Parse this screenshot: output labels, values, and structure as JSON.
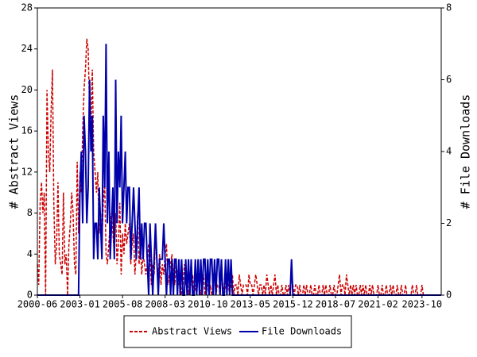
{
  "chart_data": {
    "type": "line",
    "y_label": "# Abstract Views",
    "y2_label": "# File Downloads",
    "x": [
      "2000-06",
      "2000-07",
      "2000-08",
      "2000-09",
      "2000-10",
      "2000-11",
      "2000-12",
      "2001-01",
      "2001-02",
      "2001-03",
      "2001-04",
      "2001-05",
      "2001-06",
      "2001-07",
      "2001-08",
      "2001-09",
      "2001-10",
      "2001-11",
      "2001-12",
      "2002-01",
      "2002-02",
      "2002-03",
      "2002-04",
      "2002-05",
      "2002-06",
      "2002-07",
      "2002-08",
      "2002-09",
      "2002-10",
      "2002-11",
      "2002-12",
      "2003-01",
      "2003-02",
      "2003-03",
      "2003-04",
      "2003-05",
      "2003-06",
      "2003-07",
      "2003-08",
      "2003-09",
      "2003-10",
      "2003-11",
      "2003-12",
      "2004-01",
      "2004-02",
      "2004-03",
      "2004-04",
      "2004-05",
      "2004-06",
      "2004-07",
      "2004-08",
      "2004-09",
      "2004-10",
      "2004-11",
      "2004-12",
      "2005-01",
      "2005-02",
      "2005-03",
      "2005-04",
      "2005-05",
      "2005-06",
      "2005-07",
      "2005-08",
      "2005-09",
      "2005-10",
      "2005-11",
      "2005-12",
      "2006-01",
      "2006-02",
      "2006-03",
      "2006-04",
      "2006-05",
      "2006-06",
      "2006-07",
      "2006-08",
      "2006-09",
      "2006-10",
      "2006-11",
      "2006-12",
      "2007-01",
      "2007-02",
      "2007-03",
      "2007-04",
      "2007-05",
      "2007-06",
      "2007-07",
      "2007-08",
      "2007-09",
      "2007-10",
      "2007-11",
      "2007-12",
      "2008-01",
      "2008-02",
      "2008-03",
      "2008-04",
      "2008-05",
      "2008-06",
      "2008-07",
      "2008-08",
      "2008-09",
      "2008-10",
      "2008-11",
      "2008-12",
      "2009-01",
      "2009-02",
      "2009-03",
      "2009-04",
      "2009-05",
      "2009-06",
      "2009-07",
      "2009-08",
      "2009-09",
      "2009-10",
      "2009-11",
      "2009-12",
      "2010-01",
      "2010-02",
      "2010-03",
      "2010-04",
      "2010-05",
      "2010-06",
      "2010-07",
      "2010-08",
      "2010-09",
      "2010-10",
      "2010-11",
      "2010-12",
      "2011-01",
      "2011-02",
      "2011-03",
      "2011-04",
      "2011-05",
      "2011-06",
      "2011-07",
      "2011-08",
      "2011-09",
      "2011-10",
      "2011-11",
      "2011-12",
      "2012-01",
      "2012-02",
      "2012-03",
      "2012-04",
      "2012-05",
      "2012-06",
      "2012-07",
      "2012-08",
      "2012-09",
      "2012-10",
      "2012-11",
      "2012-12",
      "2013-01",
      "2013-02",
      "2013-03",
      "2013-04",
      "2013-05",
      "2013-06",
      "2013-07",
      "2013-08",
      "2013-09",
      "2013-10",
      "2013-11",
      "2013-12",
      "2014-01",
      "2014-02",
      "2014-03",
      "2014-04",
      "2014-05",
      "2014-06",
      "2014-07",
      "2014-08",
      "2014-09",
      "2014-10",
      "2014-11",
      "2014-12",
      "2015-01",
      "2015-02",
      "2015-03",
      "2015-04",
      "2015-05",
      "2015-06",
      "2015-07",
      "2015-08",
      "2015-09",
      "2015-10",
      "2015-11",
      "2015-12",
      "2016-01",
      "2016-02",
      "2016-03",
      "2016-04",
      "2016-05",
      "2016-06",
      "2016-07",
      "2016-08",
      "2016-09",
      "2016-10",
      "2016-11",
      "2016-12",
      "2017-01",
      "2017-02",
      "2017-03",
      "2017-04",
      "2017-05",
      "2017-06",
      "2017-07",
      "2017-08",
      "2017-09",
      "2017-10",
      "2017-11",
      "2017-12",
      "2018-01",
      "2018-02",
      "2018-03",
      "2018-04",
      "2018-05",
      "2018-06",
      "2018-07",
      "2018-08",
      "2018-09",
      "2018-10",
      "2018-11",
      "2018-12",
      "2019-01",
      "2019-02",
      "2019-03",
      "2019-04",
      "2019-05",
      "2019-06",
      "2019-07",
      "2019-08",
      "2019-09",
      "2019-10",
      "2019-11",
      "2019-12",
      "2020-01",
      "2020-02",
      "2020-03",
      "2020-04",
      "2020-05",
      "2020-06",
      "2020-07",
      "2020-08",
      "2020-09",
      "2020-10",
      "2020-11",
      "2020-12",
      "2021-01",
      "2021-02",
      "2021-03",
      "2021-04",
      "2021-05",
      "2021-06",
      "2021-07",
      "2021-08",
      "2021-09",
      "2021-10",
      "2021-11",
      "2021-12",
      "2022-01",
      "2022-02",
      "2022-03",
      "2022-04",
      "2022-05",
      "2022-06",
      "2022-07",
      "2022-08",
      "2022-09",
      "2022-10",
      "2022-11",
      "2022-12",
      "2023-01",
      "2023-02",
      "2023-03",
      "2023-04",
      "2023-05",
      "2023-06",
      "2023-07",
      "2023-08",
      "2023-09",
      "2023-10",
      "2023-11",
      "2023-12",
      "2024-01",
      "2024-02",
      "2024-03",
      "2024-04",
      "2024-05",
      "2024-06",
      "2024-07",
      "2024-08",
      "2024-09",
      "2024-10",
      "2024-11",
      "2024-12"
    ],
    "series": [
      {
        "name": "Abstract Views",
        "color": "#cc0000",
        "dash": true,
        "values": [
          3,
          1,
          9,
          11,
          8,
          10,
          0,
          20,
          14,
          12,
          18,
          22,
          9,
          3,
          5,
          11,
          4,
          3,
          2,
          10,
          3,
          4,
          0,
          5,
          7,
          10,
          8,
          3,
          2,
          13,
          6,
          12,
          10,
          16,
          20,
          22,
          25,
          24,
          18,
          16,
          22,
          14,
          12,
          10,
          12,
          6,
          8,
          5,
          9,
          11,
          4,
          3,
          5,
          7,
          8,
          6,
          4,
          8,
          3,
          5,
          9,
          2,
          6,
          4,
          7,
          5,
          6,
          7,
          3,
          5,
          6,
          2,
          4,
          8,
          3,
          5,
          2,
          4,
          3,
          2,
          3,
          5,
          4,
          1,
          3,
          2,
          6,
          3,
          2,
          4,
          1,
          3,
          2,
          4,
          5,
          1,
          2,
          3,
          4,
          2,
          1,
          3,
          2,
          1,
          2,
          0,
          1,
          3,
          1,
          2,
          0,
          1,
          1,
          2,
          0,
          1,
          0,
          2,
          1,
          0,
          1,
          2,
          0,
          1,
          1,
          0,
          1,
          0,
          1,
          2,
          0,
          1,
          1,
          0,
          2,
          1,
          0,
          1,
          2,
          1,
          0,
          1,
          2,
          0,
          1,
          1,
          0,
          2,
          1,
          0,
          1,
          1,
          1,
          0,
          2,
          1,
          1,
          0,
          1,
          2,
          1,
          0,
          1,
          1,
          0,
          1,
          0,
          2,
          1,
          0,
          1,
          0,
          1,
          2,
          0,
          1,
          0,
          0,
          1,
          0,
          0,
          1,
          0,
          1,
          0,
          2,
          1,
          0,
          1,
          1,
          0,
          1,
          0,
          0,
          1,
          0,
          1,
          0,
          0,
          1,
          0,
          0,
          1,
          0,
          0,
          1,
          0,
          0,
          1,
          0,
          1,
          0,
          0,
          1,
          0,
          0,
          1,
          0,
          0,
          1,
          2,
          0,
          1,
          1,
          0,
          2,
          1,
          0,
          1,
          0,
          1,
          0,
          1,
          0,
          0,
          1,
          0,
          1,
          0,
          1,
          0,
          0,
          1,
          0,
          1,
          0,
          0,
          0,
          1,
          0,
          0,
          1,
          0,
          0,
          1,
          0,
          0,
          1,
          0,
          1,
          0,
          0,
          1,
          0,
          0,
          1,
          0,
          0,
          1,
          0,
          0,
          0,
          0,
          1,
          0,
          0,
          1,
          0,
          0,
          0,
          1,
          0,
          0,
          0,
          0,
          0,
          0,
          0,
          0,
          0,
          0,
          0,
          0,
          0,
          0
        ]
      },
      {
        "name": "File Downloads",
        "color": "#0000aa",
        "axis": "y2",
        "values": [
          0,
          0,
          0,
          0,
          0,
          0,
          0,
          0,
          0,
          0,
          0,
          0,
          0,
          0,
          0,
          0,
          0,
          0,
          0,
          0,
          0,
          0,
          0,
          0,
          0,
          0,
          0,
          0,
          0,
          0,
          0,
          3,
          4,
          2,
          5,
          4,
          2,
          3,
          6,
          4,
          5,
          1,
          2,
          2,
          1,
          3,
          2,
          1,
          5,
          3,
          7,
          2,
          4,
          1,
          2,
          3,
          1,
          6,
          2,
          4,
          3,
          5,
          2,
          3,
          4,
          2,
          3,
          3,
          1,
          2,
          3,
          2,
          1,
          2,
          3,
          1,
          2,
          1,
          2,
          2,
          1,
          0,
          2,
          1,
          0,
          1,
          2,
          1,
          0,
          1,
          1,
          1,
          2,
          1,
          0,
          1,
          1,
          0,
          1,
          0,
          1,
          1,
          0,
          1,
          0,
          1,
          0,
          0,
          1,
          0,
          1,
          0,
          1,
          0,
          0,
          1,
          0,
          1,
          0,
          1,
          0,
          1,
          1,
          0,
          1,
          0,
          1,
          1,
          0,
          1,
          0,
          1,
          1,
          0,
          1,
          0,
          0,
          1,
          0,
          1,
          0,
          1,
          0,
          0,
          0,
          0,
          0,
          0,
          0,
          0,
          0,
          0,
          0,
          0,
          0,
          0,
          0,
          0,
          0,
          0,
          0,
          0,
          0,
          0,
          0,
          0,
          0,
          0,
          0,
          0,
          0,
          0,
          0,
          0,
          0,
          0,
          0,
          0,
          0,
          0,
          0,
          0,
          0,
          0,
          0,
          1,
          0,
          0,
          0,
          0,
          0,
          0,
          0,
          0,
          0,
          0,
          0,
          0,
          0,
          0,
          0,
          0,
          0,
          0,
          0,
          0,
          0,
          0,
          0,
          0,
          0,
          0,
          0,
          0,
          0,
          0,
          0,
          0,
          0,
          0,
          0,
          0,
          0,
          0,
          0,
          0,
          0,
          0,
          0,
          0,
          0,
          0,
          0,
          0,
          0,
          0,
          0,
          0,
          0,
          0,
          0,
          0,
          0,
          0,
          0,
          0,
          0,
          0,
          0,
          0,
          0,
          0,
          0,
          0,
          0,
          0,
          0,
          0,
          0,
          0,
          0,
          0,
          0,
          0,
          0,
          0,
          0,
          0,
          0,
          0,
          0,
          0,
          0,
          0,
          0,
          0,
          0,
          0,
          0,
          0,
          0,
          0,
          0,
          0,
          0,
          0,
          0,
          0,
          0,
          0,
          0,
          0,
          0,
          0,
          0
        ]
      }
    ],
    "xlim": [
      "2000-06",
      "2024-12"
    ],
    "xticks": [
      "2000-06",
      "2003-01",
      "2005-08",
      "2008-03",
      "2010-10",
      "2013-05",
      "2015-12",
      "2018-07",
      "2021-02",
      "2023-10"
    ],
    "ylim": [
      0,
      28
    ],
    "yticks": [
      0,
      4,
      8,
      12,
      16,
      20,
      24,
      28
    ],
    "y2lim": [
      0,
      8
    ],
    "y2ticks": [
      0,
      2,
      4,
      6,
      8
    ],
    "legend": "bottom"
  }
}
